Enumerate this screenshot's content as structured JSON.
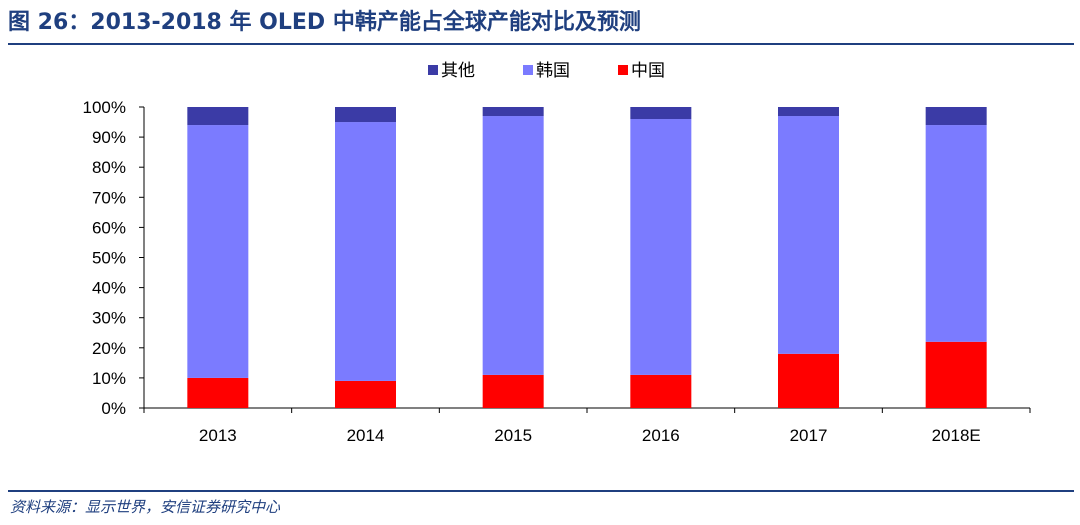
{
  "figure": {
    "title": "图 26：2013-2018 年 OLED 中韩产能占全球产能对比及预测",
    "source": "资料来源：显示世界，安信证券研究中心"
  },
  "colors": {
    "title_blue": "#1f3f7f",
    "other": "#3b3ba6",
    "korea": "#7b7bff",
    "china": "#ff0000"
  },
  "chart_data": {
    "type": "bar",
    "stacked": true,
    "categories": [
      "2013",
      "2014",
      "2015",
      "2016",
      "2017",
      "2018E"
    ],
    "series": [
      {
        "name": "中国",
        "color": "#ff0000",
        "values": [
          10,
          9,
          11,
          11,
          18,
          22
        ]
      },
      {
        "name": "韩国",
        "color": "#7b7bff",
        "values": [
          84,
          86,
          86,
          85,
          79,
          72
        ]
      },
      {
        "name": "其他",
        "color": "#3b3ba6",
        "values": [
          6,
          5,
          3,
          4,
          3,
          6
        ]
      }
    ],
    "legend": {
      "placement": "top-center",
      "order": [
        "其他",
        "韩国",
        "中国"
      ]
    },
    "ylim": [
      0,
      100
    ],
    "yticks": [
      "0%",
      "10%",
      "20%",
      "30%",
      "40%",
      "50%",
      "60%",
      "70%",
      "80%",
      "90%",
      "100%"
    ],
    "grid": false,
    "xlabel": "",
    "ylabel": ""
  }
}
